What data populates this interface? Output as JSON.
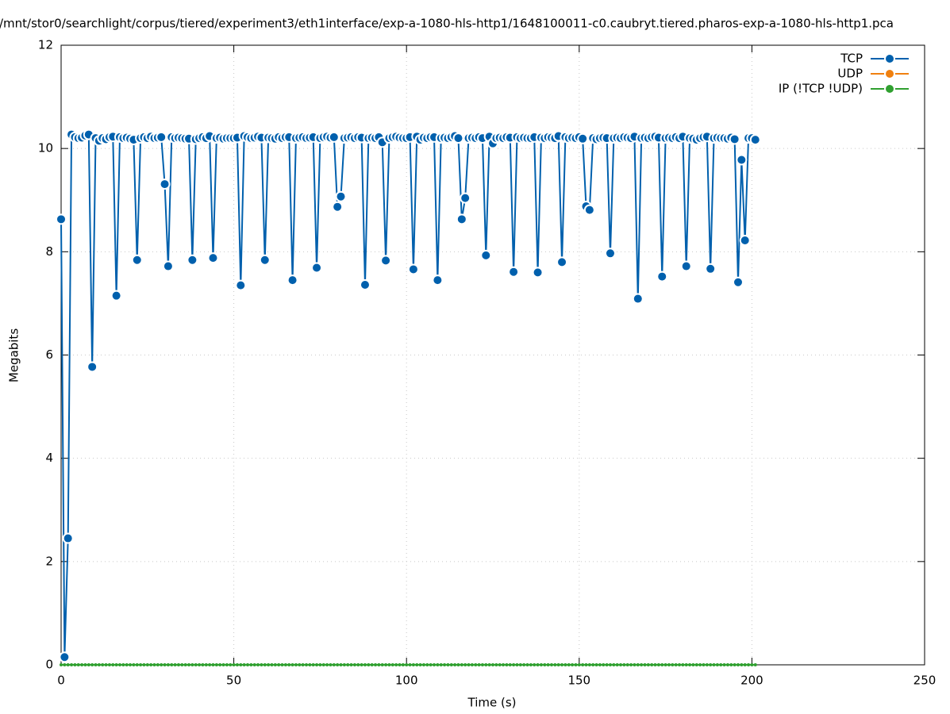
{
  "chart_data": {
    "type": "line",
    "title": "/mnt/stor0/searchlight/corpus/tiered/experiment3/eth1interface/exp-a-1080-hls-http1/1648100011-c0.caubryt.tiered.pharos-exp-a-1080-hls-http1.pca",
    "x_label": "Time (s)",
    "y_label": "Megabits",
    "xlim": [
      0,
      250
    ],
    "xticks": [
      0,
      50,
      100,
      150,
      200,
      250
    ],
    "ylim": [
      0,
      12
    ],
    "yticks": [
      0,
      2,
      4,
      6,
      8,
      10,
      12
    ],
    "grid": true,
    "legend": "top-right",
    "x": [
      0,
      1,
      2,
      3,
      4,
      5,
      6,
      7,
      8,
      9,
      10,
      11,
      12,
      13,
      14,
      15,
      16,
      17,
      18,
      19,
      20,
      21,
      22,
      23,
      24,
      25,
      26,
      27,
      28,
      29,
      30,
      31,
      32,
      33,
      34,
      35,
      36,
      37,
      38,
      39,
      40,
      41,
      42,
      43,
      44,
      45,
      46,
      47,
      48,
      49,
      50,
      51,
      52,
      53,
      54,
      55,
      56,
      57,
      58,
      59,
      60,
      61,
      62,
      63,
      64,
      65,
      66,
      67,
      68,
      69,
      70,
      71,
      72,
      73,
      74,
      75,
      76,
      77,
      78,
      79,
      80,
      81,
      82,
      83,
      84,
      85,
      86,
      87,
      88,
      89,
      90,
      91,
      92,
      93,
      94,
      95,
      96,
      97,
      98,
      99,
      100,
      101,
      102,
      103,
      104,
      105,
      106,
      107,
      108,
      109,
      110,
      111,
      112,
      113,
      114,
      115,
      116,
      117,
      118,
      119,
      120,
      121,
      122,
      123,
      124,
      125,
      126,
      127,
      128,
      129,
      130,
      131,
      132,
      133,
      134,
      135,
      136,
      137,
      138,
      139,
      140,
      141,
      142,
      143,
      144,
      145,
      146,
      147,
      148,
      149,
      150,
      151,
      152,
      153,
      154,
      155,
      156,
      157,
      158,
      159,
      160,
      161,
      162,
      163,
      164,
      165,
      166,
      167,
      168,
      169,
      170,
      171,
      172,
      173,
      174,
      175,
      176,
      177,
      178,
      179,
      180,
      181,
      182,
      183,
      184,
      185,
      186,
      187,
      188,
      189,
      190,
      191,
      192,
      193,
      194,
      195,
      196,
      197,
      198,
      199,
      200,
      201
    ],
    "series": [
      {
        "name": "TCP",
        "color": "#0060ad",
        "values": [
          8.63,
          0.15,
          2.45,
          10.27,
          10.22,
          10.2,
          10.21,
          10.25,
          10.27,
          5.77,
          10.2,
          10.15,
          10.2,
          10.18,
          10.22,
          10.23,
          7.15,
          10.22,
          10.2,
          10.21,
          10.19,
          10.17,
          7.84,
          10.2,
          10.22,
          10.2,
          10.23,
          10.2,
          10.21,
          10.22,
          9.31,
          7.72,
          10.22,
          10.2,
          10.21,
          10.2,
          10.19,
          10.19,
          7.84,
          10.18,
          10.2,
          10.22,
          10.2,
          10.24,
          7.88,
          10.2,
          10.21,
          10.19,
          10.2,
          10.2,
          10.2,
          10.21,
          7.35,
          10.24,
          10.22,
          10.2,
          10.21,
          10.23,
          10.21,
          7.84,
          10.21,
          10.2,
          10.19,
          10.22,
          10.2,
          10.22,
          10.22,
          7.45,
          10.2,
          10.21,
          10.22,
          10.2,
          10.21,
          10.22,
          7.69,
          10.2,
          10.22,
          10.23,
          10.21,
          10.22,
          8.87,
          9.07,
          10.2,
          10.21,
          10.22,
          10.2,
          10.22,
          10.21,
          7.36,
          10.2,
          10.21,
          10.2,
          10.22,
          10.12,
          7.83,
          10.2,
          10.22,
          10.23,
          10.21,
          10.2,
          10.2,
          10.22,
          7.66,
          10.23,
          10.17,
          10.21,
          10.2,
          10.22,
          10.22,
          7.45,
          10.2,
          10.21,
          10.2,
          10.22,
          10.24,
          10.2,
          8.63,
          9.04,
          10.2,
          10.21,
          10.2,
          10.22,
          10.2,
          7.93,
          10.23,
          10.1,
          10.2,
          10.21,
          10.2,
          10.22,
          10.21,
          7.61,
          10.22,
          10.2,
          10.21,
          10.2,
          10.2,
          10.22,
          7.6,
          10.21,
          10.2,
          10.22,
          10.21,
          10.2,
          10.24,
          7.8,
          10.22,
          10.2,
          10.21,
          10.2,
          10.22,
          10.19,
          8.88,
          8.81,
          10.2,
          10.18,
          10.2,
          10.21,
          10.2,
          7.97,
          10.2,
          10.21,
          10.2,
          10.22,
          10.21,
          10.2,
          10.23,
          7.09,
          10.2,
          10.21,
          10.2,
          10.22,
          10.23,
          10.21,
          7.52,
          10.2,
          10.21,
          10.2,
          10.22,
          10.2,
          10.23,
          7.72,
          10.2,
          10.19,
          10.17,
          10.2,
          10.22,
          10.23,
          7.67,
          10.2,
          10.21,
          10.2,
          10.2,
          10.19,
          10.21,
          10.18,
          7.41,
          9.78,
          8.22,
          10.2,
          10.2,
          10.17
        ]
      },
      {
        "name": "UDP",
        "color": "#f0800f",
        "values": [
          null,
          null,
          null,
          null,
          null,
          null,
          null,
          null,
          null,
          null,
          null,
          null,
          null,
          null,
          null,
          null,
          null,
          null,
          null,
          null,
          null,
          null,
          null,
          null,
          null,
          null,
          null,
          null,
          null,
          null,
          null,
          null,
          null,
          null,
          null,
          null,
          null,
          null,
          null,
          null,
          null,
          null,
          null,
          null,
          null,
          null,
          null,
          null,
          null,
          null,
          null,
          null,
          null,
          null,
          null,
          null,
          null,
          null,
          null,
          null,
          null,
          null,
          null,
          null,
          null,
          null,
          null,
          null,
          null,
          null,
          null,
          null,
          null,
          null,
          null,
          null,
          null,
          null,
          null,
          null,
          null,
          null,
          null,
          null,
          null,
          null,
          null,
          null,
          null,
          null,
          null,
          null,
          null,
          null,
          null,
          null,
          null,
          null,
          null,
          null,
          null,
          null,
          null,
          null,
          null,
          null,
          null,
          null,
          null,
          null,
          null,
          null,
          null,
          null,
          null,
          null,
          null,
          null,
          null,
          null,
          null,
          null,
          null,
          null,
          null,
          null,
          null,
          null,
          null,
          null,
          null,
          null,
          null,
          null,
          null,
          null,
          null,
          null,
          null,
          null,
          null,
          null,
          null,
          null,
          null,
          null,
          null,
          null,
          null,
          null,
          null,
          null,
          null,
          null,
          null,
          null,
          null,
          null,
          null,
          null,
          null,
          null,
          null,
          null,
          null,
          null,
          null,
          null,
          null,
          null,
          null,
          null,
          null,
          null,
          null,
          null,
          null,
          null,
          null,
          null,
          null,
          null,
          null,
          null,
          null,
          null,
          null,
          null,
          null,
          null,
          null,
          null,
          null,
          null,
          null,
          null,
          null,
          null,
          null,
          null,
          null,
          null
        ]
      },
      {
        "name": "IP (!TCP  !UDP)",
        "color": "#30a030",
        "values": [
          0,
          0,
          0,
          0,
          0,
          0,
          0,
          0,
          0,
          0,
          0,
          0,
          0,
          0,
          0,
          0,
          0,
          0,
          0,
          0,
          0,
          0,
          0,
          0,
          0,
          0,
          0,
          0,
          0,
          0,
          0,
          0,
          0,
          0,
          0,
          0,
          0,
          0,
          0,
          0,
          0,
          0,
          0,
          0,
          0,
          0,
          0,
          0,
          0,
          0,
          0,
          0,
          0,
          0,
          0,
          0,
          0,
          0,
          0,
          0,
          0,
          0,
          0,
          0,
          0,
          0,
          0,
          0,
          0,
          0,
          0,
          0,
          0,
          0,
          0,
          0,
          0,
          0,
          0,
          0,
          0,
          0,
          0,
          0,
          0,
          0,
          0,
          0,
          0,
          0,
          0,
          0,
          0,
          0,
          0,
          0,
          0,
          0,
          0,
          0,
          0,
          0,
          0,
          0,
          0,
          0,
          0,
          0,
          0,
          0,
          0,
          0,
          0,
          0,
          0,
          0,
          0,
          0,
          0,
          0,
          0,
          0,
          0,
          0,
          0,
          0,
          0,
          0,
          0,
          0,
          0,
          0,
          0,
          0,
          0,
          0,
          0,
          0,
          0,
          0,
          0,
          0,
          0,
          0,
          0,
          0,
          0,
          0,
          0,
          0,
          0,
          0,
          0,
          0,
          0,
          0,
          0,
          0,
          0,
          0,
          0,
          0,
          0,
          0,
          0,
          0,
          0,
          0,
          0,
          0,
          0,
          0,
          0,
          0,
          0,
          0,
          0,
          0,
          0,
          0,
          0,
          0,
          0,
          0,
          0,
          0,
          0,
          0,
          0,
          0,
          0,
          0,
          0,
          0,
          0,
          0,
          0,
          0,
          0,
          0,
          0,
          0
        ]
      }
    ]
  }
}
